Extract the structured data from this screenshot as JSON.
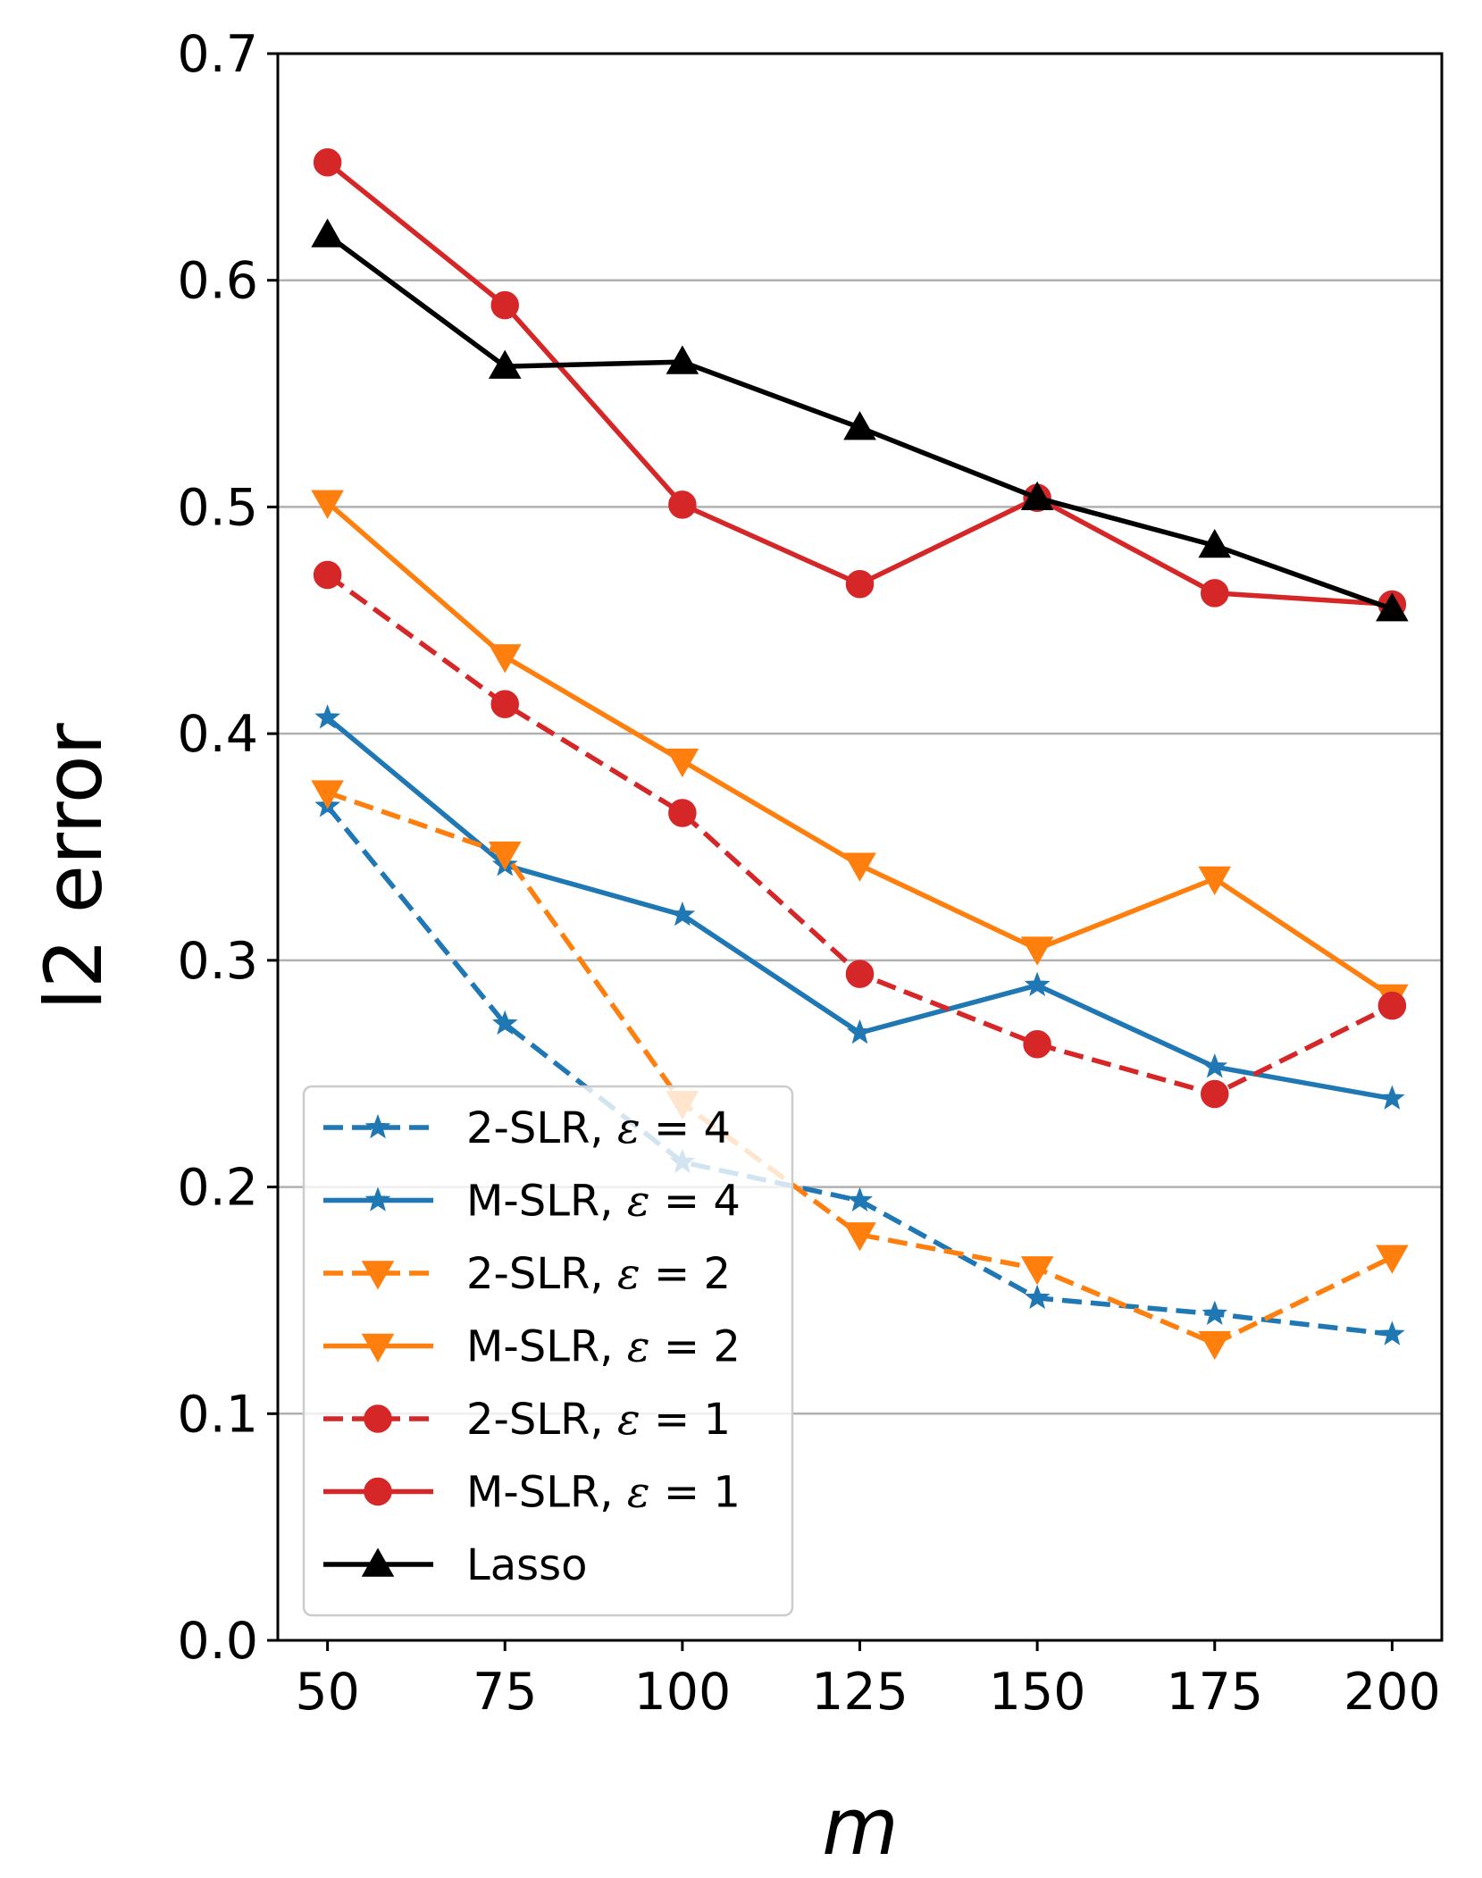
{
  "chart_data": {
    "type": "line",
    "xlabel": "m",
    "ylabel": "l2 error",
    "x": [
      50,
      75,
      100,
      125,
      150,
      175,
      200
    ],
    "xlim": [
      43,
      207
    ],
    "ylim": [
      0.0,
      0.7
    ],
    "xticks": [
      "50",
      "75",
      "100",
      "125",
      "150",
      "175",
      "200"
    ],
    "yticks": [
      "0.0",
      "0.1",
      "0.2",
      "0.3",
      "0.4",
      "0.5",
      "0.6",
      "0.7"
    ],
    "ytick_values": [
      0.0,
      0.1,
      0.2,
      0.3,
      0.4,
      0.5,
      0.6,
      0.7
    ],
    "grid": "horizontal",
    "legend_position": "lower-left",
    "series": [
      {
        "name": "2-SLR, ",
        "eps": "4",
        "color": "#1f77b4",
        "dash": "dashed",
        "marker": "star",
        "values": [
          0.368,
          0.272,
          0.211,
          0.194,
          0.151,
          0.144,
          0.135
        ]
      },
      {
        "name": "M-SLR, ",
        "eps": "4",
        "color": "#1f77b4",
        "dash": "solid",
        "marker": "star",
        "values": [
          0.407,
          0.342,
          0.32,
          0.268,
          0.289,
          0.253,
          0.239
        ]
      },
      {
        "name": "2-SLR, ",
        "eps": "2",
        "color": "#ff7f0e",
        "dash": "dashed",
        "marker": "triangle-down",
        "values": [
          0.374,
          0.347,
          0.237,
          0.179,
          0.164,
          0.131,
          0.169
        ]
      },
      {
        "name": "M-SLR, ",
        "eps": "2",
        "color": "#ff7f0e",
        "dash": "solid",
        "marker": "triangle-down",
        "values": [
          0.502,
          0.434,
          0.388,
          0.342,
          0.305,
          0.336,
          0.284
        ]
      },
      {
        "name": "2-SLR, ",
        "eps": "1",
        "color": "#d62728",
        "dash": "dashed",
        "marker": "circle",
        "values": [
          0.47,
          0.413,
          0.365,
          0.294,
          0.263,
          0.241,
          0.28
        ]
      },
      {
        "name": "M-SLR, ",
        "eps": "1",
        "color": "#d62728",
        "dash": "solid",
        "marker": "circle",
        "values": [
          0.652,
          0.589,
          0.501,
          0.466,
          0.504,
          0.462,
          0.457
        ]
      },
      {
        "name": "Lasso",
        "eps": "",
        "color": "#000000",
        "dash": "solid",
        "marker": "triangle-up",
        "values": [
          0.62,
          0.562,
          0.564,
          0.535,
          0.504,
          0.483,
          0.455
        ]
      }
    ]
  }
}
